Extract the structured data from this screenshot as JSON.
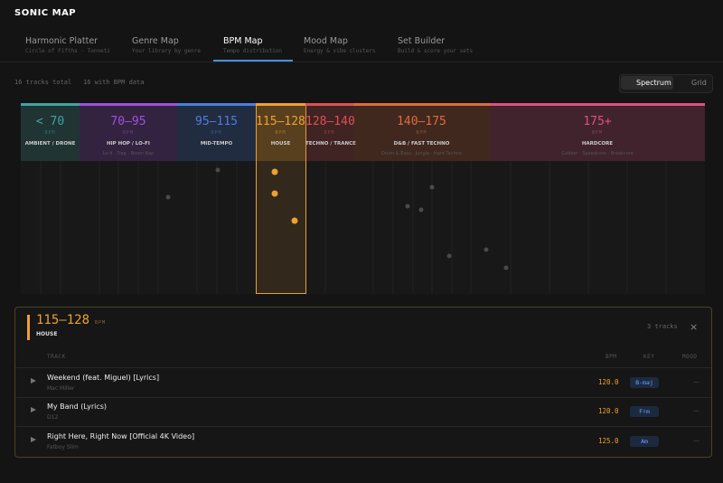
{
  "header": {
    "title": "SONIC MAP"
  },
  "tabs": [
    {
      "label": "Harmonic Platter",
      "sub": "Circle of Fifths · Tonnetz"
    },
    {
      "label": "Genre Map",
      "sub": "Your library by genre"
    },
    {
      "label": "BPM Map",
      "sub": "Tempo distribution"
    },
    {
      "label": "Mood Map",
      "sub": "Energy & vibe clusters"
    },
    {
      "label": "Set Builder",
      "sub": "Build & score your sets"
    }
  ],
  "stats": {
    "total": "16 tracks total",
    "with_bpm": "16 with BPM data"
  },
  "view_toggle": [
    "Spectrum",
    "Grid"
  ],
  "bands": [
    {
      "range": "< 70",
      "unit": "BPM",
      "genre": "AMBIENT / DRONE"
    },
    {
      "range": "70–95",
      "unit": "BPM",
      "genre": "HIP HOP / LO-FI",
      "genres": "Lo-fi · Trap · Boom Bap"
    },
    {
      "range": "95–115",
      "unit": "BPM",
      "genre": "MID-TEMPO"
    },
    {
      "range": "115–128",
      "unit": "BPM",
      "genre": "HOUSE"
    },
    {
      "range": "128–140",
      "unit": "BPM",
      "genre": "TECHNO / TRANCE"
    },
    {
      "range": "140–175",
      "unit": "BPM",
      "genre": "D&B / FAST TECHNO",
      "genres": "Drum & Bass · Jungle · Hard Techno"
    },
    {
      "range": "175+",
      "unit": "BPM",
      "genre": "HARDCORE",
      "genres": "Gabber · Speedcore · Breakcore"
    }
  ],
  "detail": {
    "range": "115–128",
    "unit": "BPM",
    "genre": "HOUSE",
    "count": "3 tracks",
    "close": "×",
    "columns": [
      "TRACK",
      "BPM",
      "KEY",
      "MOOD"
    ],
    "rows": [
      {
        "title": "Weekend (feat. Miguel) [Lyrics]",
        "artist": "Mac Miller",
        "bpm": "120.0",
        "key": "B-maj",
        "mood": "—"
      },
      {
        "title": "My Band (Lyrics)",
        "artist": "D12",
        "bpm": "120.0",
        "key": "F♯m",
        "mood": "—"
      },
      {
        "title": "Right Here, Right Now [Official 4K Video]",
        "artist": "Fatboy Slim",
        "bpm": "125.0",
        "key": "Am",
        "mood": "—"
      }
    ]
  }
}
